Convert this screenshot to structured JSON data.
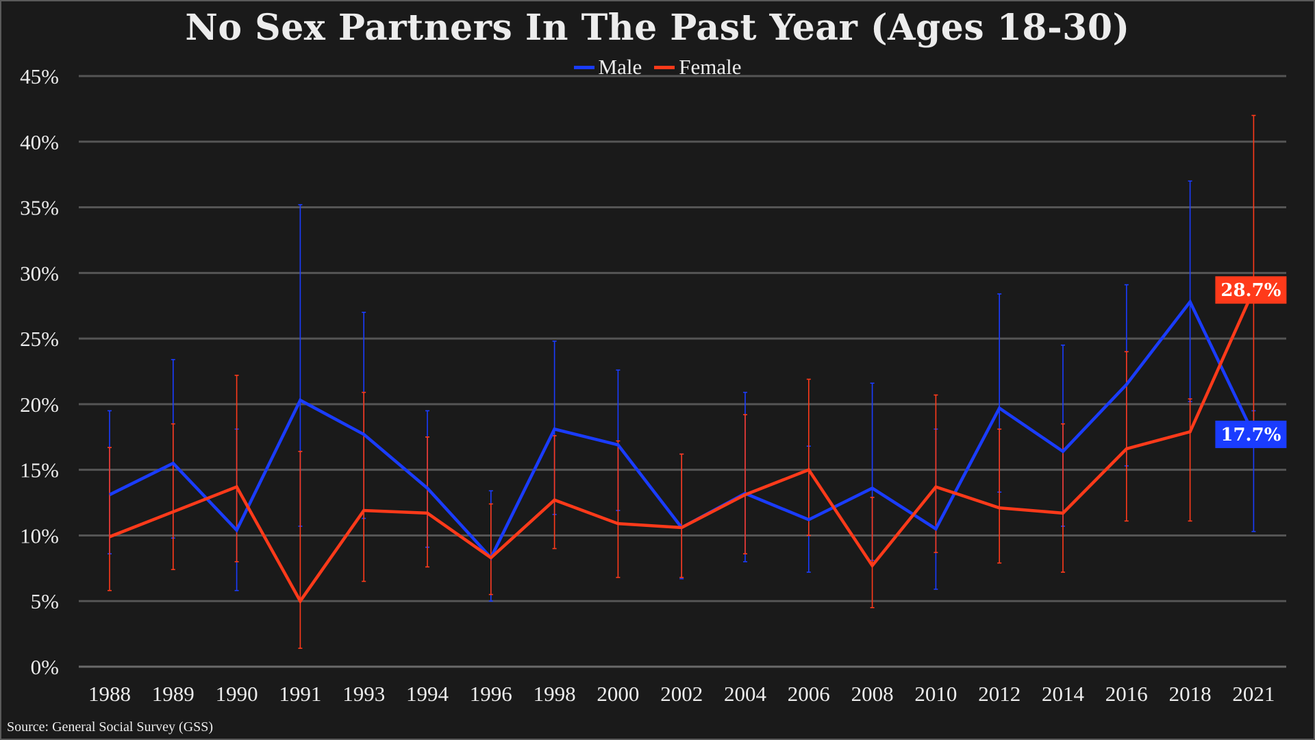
{
  "chart_data": {
    "type": "line",
    "title": "No Sex Partners In The Past Year (Ages 18-30)",
    "categories": [
      "1988",
      "1989",
      "1990",
      "1991",
      "1993",
      "1994",
      "1996",
      "1998",
      "2000",
      "2002",
      "2004",
      "2006",
      "2008",
      "2010",
      "2012",
      "2014",
      "2016",
      "2018",
      "2021"
    ],
    "ylim": [
      0,
      45
    ],
    "yticks": [
      0,
      5,
      10,
      15,
      20,
      25,
      30,
      35,
      40,
      45
    ],
    "ytick_labels": [
      "0%",
      "5%",
      "10%",
      "15%",
      "20%",
      "25%",
      "30%",
      "35%",
      "40%",
      "45%"
    ],
    "grid": true,
    "legend_position": "top-center",
    "series": [
      {
        "name": "Male",
        "color": "#1a3cff",
        "values": [
          13.1,
          15.5,
          10.4,
          20.3,
          17.7,
          13.6,
          8.3,
          18.1,
          16.9,
          10.6,
          13.2,
          11.2,
          13.6,
          10.5,
          19.7,
          16.4,
          21.5,
          27.8,
          17.7
        ],
        "err_low": [
          8.6,
          9.8,
          5.8,
          10.7,
          11.3,
          9.1,
          5.0,
          11.6,
          11.9,
          6.7,
          8.0,
          7.2,
          8.1,
          5.9,
          13.3,
          10.7,
          15.3,
          20.2,
          10.3
        ],
        "err_high": [
          19.5,
          23.4,
          18.1,
          35.2,
          27.0,
          19.5,
          13.4,
          24.8,
          22.6,
          16.2,
          20.9,
          16.8,
          21.6,
          18.1,
          28.4,
          24.5,
          29.1,
          37.0,
          19.5
        ]
      },
      {
        "name": "Female",
        "color": "#ff3a1a",
        "values": [
          9.9,
          11.8,
          13.7,
          5.0,
          11.9,
          11.7,
          8.3,
          12.7,
          10.9,
          10.6,
          13.1,
          15.0,
          7.7,
          13.7,
          12.1,
          11.7,
          16.6,
          17.9,
          28.7
        ],
        "err_low": [
          5.8,
          7.4,
          8.0,
          1.4,
          6.5,
          7.6,
          5.5,
          9.0,
          6.8,
          6.8,
          8.6,
          10.0,
          4.5,
          8.7,
          7.9,
          7.2,
          11.1,
          11.1,
          18.0
        ],
        "err_high": [
          16.7,
          18.5,
          22.2,
          16.4,
          20.9,
          17.5,
          12.4,
          17.6,
          17.2,
          16.2,
          19.2,
          21.9,
          12.9,
          20.7,
          18.1,
          18.5,
          24.0,
          20.4,
          42.0
        ]
      }
    ],
    "end_labels": [
      {
        "series": "Female",
        "text": "28.7%",
        "color": "#ff3a1a"
      },
      {
        "series": "Male",
        "text": "17.7%",
        "color": "#1a3cff"
      }
    ],
    "annotation": "Source: General Social Survey (GSS)"
  },
  "colors": {
    "background": "#1a1a1a",
    "grid": "#555555",
    "text": "#ececec"
  }
}
